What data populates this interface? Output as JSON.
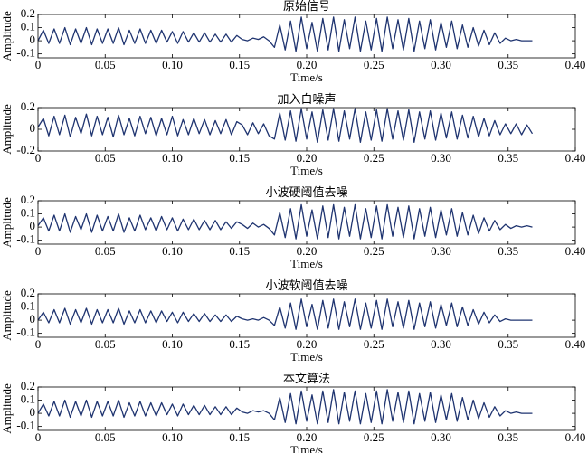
{
  "chart_data": [
    {
      "type": "line",
      "title": "原始信号",
      "xlabel": "Time/s",
      "ylabel": "Amplitude",
      "color": "#1f3470",
      "xlim": [
        0,
        0.4
      ],
      "ylim": [
        -0.13,
        0.2
      ],
      "xticks": [
        0,
        0.05,
        {
          "value": 0.1,
          "label": "0.10"
        },
        0.15,
        {
          "value": 0.2,
          "label": "0.20"
        },
        0.25,
        {
          "value": 0.3,
          "label": "0.30"
        },
        0.35,
        {
          "value": 0.4,
          "label": "0.40"
        }
      ],
      "yticks": [
        -0.1,
        0,
        0.1,
        0.2
      ],
      "x": [
        0,
        0.004,
        0.008,
        0.012,
        0.016,
        0.02,
        0.024,
        0.028,
        0.032,
        0.036,
        0.04,
        0.044,
        0.048,
        0.052,
        0.056,
        0.06,
        0.064,
        0.068,
        0.072,
        0.076,
        0.08,
        0.084,
        0.088,
        0.092,
        0.096,
        0.1,
        0.104,
        0.108,
        0.112,
        0.116,
        0.12,
        0.124,
        0.128,
        0.132,
        0.136,
        0.14,
        0.144,
        0.148,
        0.152,
        0.156,
        0.16,
        0.164,
        0.168,
        0.172,
        0.176,
        0.18,
        0.184,
        0.188,
        0.192,
        0.196,
        0.2,
        0.204,
        0.208,
        0.212,
        0.216,
        0.22,
        0.224,
        0.228,
        0.232,
        0.236,
        0.24,
        0.244,
        0.248,
        0.252,
        0.256,
        0.26,
        0.264,
        0.268,
        0.272,
        0.276,
        0.28,
        0.284,
        0.288,
        0.292,
        0.296,
        0.3,
        0.304,
        0.308,
        0.312,
        0.316,
        0.32,
        0.324,
        0.328,
        0.332,
        0.336,
        0.34,
        0.344,
        0.348,
        0.352,
        0.356,
        0.36,
        0.364,
        0.368
      ],
      "values": [
        0,
        0.08,
        -0.02,
        0.09,
        -0.02,
        0.1,
        -0.03,
        0.09,
        -0.02,
        0.1,
        -0.03,
        0.09,
        -0.02,
        0.09,
        -0.02,
        0.1,
        -0.03,
        0.08,
        -0.02,
        0.09,
        -0.02,
        0.08,
        -0.02,
        0.08,
        -0.01,
        0.07,
        -0.02,
        0.07,
        -0.01,
        0.06,
        -0.01,
        0.06,
        -0.01,
        0.05,
        -0.01,
        0.05,
        -0.01,
        0.04,
        0.01,
        0,
        0.02,
        0.01,
        0.03,
        0,
        -0.05,
        0.12,
        -0.07,
        0.15,
        -0.08,
        0.18,
        -0.06,
        0.14,
        -0.08,
        0.17,
        -0.07,
        0.18,
        -0.08,
        0.16,
        -0.06,
        0.18,
        -0.08,
        0.15,
        -0.07,
        0.17,
        -0.08,
        0.18,
        -0.06,
        0.16,
        -0.07,
        0.17,
        -0.08,
        0.15,
        -0.06,
        0.16,
        -0.07,
        0.14,
        -0.05,
        0.15,
        -0.06,
        0.12,
        -0.05,
        0.1,
        -0.04,
        0.08,
        -0.03,
        0.06,
        -0.02,
        0.02,
        0,
        0.01,
        0,
        0,
        0
      ]
    },
    {
      "type": "line",
      "title": "加入白噪声",
      "xlabel": "Time/s",
      "ylabel": "Amplitude",
      "color": "#1f3470",
      "xlim": [
        0,
        0.4
      ],
      "ylim": [
        -0.2,
        0.2
      ],
      "xticks": [
        0,
        0.05,
        {
          "value": 0.1,
          "label": "0.10"
        },
        0.15,
        {
          "value": 0.2,
          "label": "0.20"
        },
        0.25,
        {
          "value": 0.3,
          "label": "0.30"
        },
        0.35,
        {
          "value": 0.4,
          "label": "0.40"
        }
      ],
      "yticks": [
        -0.2,
        0,
        0.2
      ],
      "x": [
        0,
        0.004,
        0.008,
        0.012,
        0.016,
        0.02,
        0.024,
        0.028,
        0.032,
        0.036,
        0.04,
        0.044,
        0.048,
        0.052,
        0.056,
        0.06,
        0.064,
        0.068,
        0.072,
        0.076,
        0.08,
        0.084,
        0.088,
        0.092,
        0.096,
        0.1,
        0.104,
        0.108,
        0.112,
        0.116,
        0.12,
        0.124,
        0.128,
        0.132,
        0.136,
        0.14,
        0.144,
        0.148,
        0.152,
        0.156,
        0.16,
        0.164,
        0.168,
        0.172,
        0.176,
        0.18,
        0.184,
        0.188,
        0.192,
        0.196,
        0.2,
        0.204,
        0.208,
        0.212,
        0.216,
        0.22,
        0.224,
        0.228,
        0.232,
        0.236,
        0.24,
        0.244,
        0.248,
        0.252,
        0.256,
        0.26,
        0.264,
        0.268,
        0.272,
        0.276,
        0.28,
        0.284,
        0.288,
        0.292,
        0.296,
        0.3,
        0.304,
        0.308,
        0.312,
        0.316,
        0.32,
        0.324,
        0.328,
        0.332,
        0.336,
        0.34,
        0.344,
        0.348,
        0.352,
        0.356,
        0.36,
        0.364,
        0.368
      ],
      "values": [
        0.02,
        0.1,
        -0.06,
        0.12,
        -0.05,
        0.13,
        -0.07,
        0.11,
        -0.04,
        0.14,
        -0.06,
        0.12,
        -0.05,
        0.11,
        -0.07,
        0.13,
        -0.05,
        0.1,
        -0.06,
        0.12,
        -0.04,
        0.11,
        -0.06,
        0.1,
        -0.05,
        0.12,
        -0.06,
        0.09,
        -0.05,
        0.1,
        -0.04,
        0.09,
        -0.05,
        0.08,
        -0.04,
        0.09,
        -0.05,
        0.07,
        0.04,
        -0.05,
        0.06,
        -0.04,
        0.05,
        -0.06,
        -0.09,
        0.15,
        -0.1,
        0.17,
        -0.11,
        0.19,
        -0.09,
        0.16,
        -0.12,
        0.18,
        -0.1,
        0.19,
        -0.11,
        0.17,
        -0.09,
        0.19,
        -0.12,
        0.16,
        -0.1,
        0.18,
        -0.11,
        0.19,
        -0.09,
        0.17,
        -0.1,
        0.18,
        -0.12,
        0.16,
        -0.09,
        0.17,
        -0.1,
        0.15,
        -0.08,
        0.16,
        -0.09,
        0.13,
        -0.08,
        0.12,
        -0.07,
        0.1,
        -0.06,
        0.08,
        -0.05,
        0.05,
        -0.04,
        0.05,
        -0.05,
        0.04,
        -0.04
      ]
    },
    {
      "type": "line",
      "title": "小波硬阈值去噪",
      "xlabel": "Time/s",
      "ylabel": "Amplitude",
      "color": "#1f3470",
      "xlim": [
        0,
        0.4
      ],
      "ylim": [
        -0.13,
        0.2
      ],
      "xticks": [
        0,
        0.05,
        {
          "value": 0.1,
          "label": "0.10"
        },
        0.15,
        {
          "value": 0.2,
          "label": "0.20"
        },
        0.25,
        {
          "value": 0.3,
          "label": "0.30"
        },
        0.35,
        {
          "value": 0.4,
          "label": "0.40"
        }
      ],
      "yticks": [
        -0.1,
        0,
        0.1,
        0.2
      ],
      "x": [
        0,
        0.004,
        0.008,
        0.012,
        0.016,
        0.02,
        0.024,
        0.028,
        0.032,
        0.036,
        0.04,
        0.044,
        0.048,
        0.052,
        0.056,
        0.06,
        0.064,
        0.068,
        0.072,
        0.076,
        0.08,
        0.084,
        0.088,
        0.092,
        0.096,
        0.1,
        0.104,
        0.108,
        0.112,
        0.116,
        0.12,
        0.124,
        0.128,
        0.132,
        0.136,
        0.14,
        0.144,
        0.148,
        0.152,
        0.156,
        0.16,
        0.164,
        0.168,
        0.172,
        0.176,
        0.18,
        0.184,
        0.188,
        0.192,
        0.196,
        0.2,
        0.204,
        0.208,
        0.212,
        0.216,
        0.22,
        0.224,
        0.228,
        0.232,
        0.236,
        0.24,
        0.244,
        0.248,
        0.252,
        0.256,
        0.26,
        0.264,
        0.268,
        0.272,
        0.276,
        0.28,
        0.284,
        0.288,
        0.292,
        0.296,
        0.3,
        0.304,
        0.308,
        0.312,
        0.316,
        0.32,
        0.324,
        0.328,
        0.332,
        0.336,
        0.34,
        0.344,
        0.348,
        0.352,
        0.356,
        0.36,
        0.364,
        0.368
      ],
      "values": [
        0.01,
        0.07,
        -0.03,
        0.09,
        -0.03,
        0.1,
        -0.04,
        0.08,
        -0.02,
        0.1,
        -0.04,
        0.09,
        -0.03,
        0.08,
        -0.03,
        0.1,
        -0.04,
        0.07,
        -0.03,
        0.09,
        -0.02,
        0.07,
        -0.03,
        0.08,
        -0.02,
        0.07,
        -0.03,
        0.06,
        -0.02,
        0.06,
        -0.02,
        0.05,
        -0.02,
        0.05,
        -0.02,
        0.04,
        -0.01,
        0.04,
        0.02,
        -0.01,
        0.03,
        0,
        0.02,
        -0.01,
        -0.06,
        0.11,
        -0.08,
        0.14,
        -0.09,
        0.17,
        -0.07,
        0.13,
        -0.09,
        0.16,
        -0.08,
        0.17,
        -0.09,
        0.15,
        -0.07,
        0.17,
        -0.09,
        0.14,
        -0.08,
        0.16,
        -0.09,
        0.17,
        -0.07,
        0.15,
        -0.08,
        0.16,
        -0.09,
        0.14,
        -0.07,
        0.15,
        -0.08,
        0.13,
        -0.06,
        0.14,
        -0.07,
        0.11,
        -0.06,
        0.09,
        -0.05,
        0.07,
        -0.03,
        0.05,
        -0.02,
        0.02,
        -0.01,
        0.01,
        0,
        0.01,
        0
      ]
    },
    {
      "type": "line",
      "title": "小波软阈值去噪",
      "xlabel": "Time/s",
      "ylabel": "Amplitude",
      "color": "#1f3470",
      "xlim": [
        0,
        0.4
      ],
      "ylim": [
        -0.13,
        0.2
      ],
      "xticks": [
        0,
        0.05,
        {
          "value": 0.1,
          "label": "0.10"
        },
        0.15,
        {
          "value": 0.2,
          "label": "0.20"
        },
        0.25,
        {
          "value": 0.3,
          "label": "0.30"
        },
        0.35,
        {
          "value": 0.4,
          "label": "0.40"
        }
      ],
      "yticks": [
        -0.1,
        0,
        0.1,
        0.2
      ],
      "x": [
        0,
        0.004,
        0.008,
        0.012,
        0.016,
        0.02,
        0.024,
        0.028,
        0.032,
        0.036,
        0.04,
        0.044,
        0.048,
        0.052,
        0.056,
        0.06,
        0.064,
        0.068,
        0.072,
        0.076,
        0.08,
        0.084,
        0.088,
        0.092,
        0.096,
        0.1,
        0.104,
        0.108,
        0.112,
        0.116,
        0.12,
        0.124,
        0.128,
        0.132,
        0.136,
        0.14,
        0.144,
        0.148,
        0.152,
        0.156,
        0.16,
        0.164,
        0.168,
        0.172,
        0.176,
        0.18,
        0.184,
        0.188,
        0.192,
        0.196,
        0.2,
        0.204,
        0.208,
        0.212,
        0.216,
        0.22,
        0.224,
        0.228,
        0.232,
        0.236,
        0.24,
        0.244,
        0.248,
        0.252,
        0.256,
        0.26,
        0.264,
        0.268,
        0.272,
        0.276,
        0.28,
        0.284,
        0.288,
        0.292,
        0.296,
        0.3,
        0.304,
        0.308,
        0.312,
        0.316,
        0.32,
        0.324,
        0.328,
        0.332,
        0.336,
        0.34,
        0.344,
        0.348,
        0.352,
        0.356,
        0.36,
        0.364,
        0.368
      ],
      "values": [
        0,
        0.06,
        -0.02,
        0.08,
        -0.02,
        0.09,
        -0.03,
        0.08,
        -0.02,
        0.09,
        -0.03,
        0.08,
        -0.02,
        0.08,
        -0.02,
        0.09,
        -0.03,
        0.07,
        -0.02,
        0.08,
        -0.02,
        0.07,
        -0.02,
        0.07,
        -0.01,
        0.06,
        -0.02,
        0.06,
        -0.01,
        0.05,
        -0.01,
        0.05,
        -0.01,
        0.04,
        -0.01,
        0.04,
        -0.01,
        0.03,
        0.01,
        0,
        0.01,
        0,
        0.02,
        0,
        -0.04,
        0.1,
        -0.06,
        0.13,
        -0.07,
        0.16,
        -0.05,
        0.12,
        -0.07,
        0.15,
        -0.06,
        0.16,
        -0.07,
        0.14,
        -0.05,
        0.16,
        -0.07,
        0.13,
        -0.06,
        0.15,
        -0.07,
        0.16,
        -0.05,
        0.14,
        -0.06,
        0.15,
        -0.07,
        0.13,
        -0.05,
        0.14,
        -0.06,
        0.12,
        -0.04,
        0.13,
        -0.05,
        0.1,
        -0.04,
        0.08,
        -0.03,
        0.06,
        -0.02,
        0.04,
        -0.01,
        0.01,
        0,
        0,
        0,
        0,
        0
      ]
    },
    {
      "type": "line",
      "title": "本文算法",
      "xlabel": "Time/s",
      "ylabel": "Amplitude",
      "color": "#1f3470",
      "xlim": [
        0,
        0.4
      ],
      "ylim": [
        -0.13,
        0.2
      ],
      "xticks": [
        0,
        0.05,
        {
          "value": 0.1,
          "label": "0.10"
        },
        0.15,
        {
          "value": 0.2,
          "label": "0.20"
        },
        0.25,
        {
          "value": 0.3,
          "label": "0.30"
        },
        0.35,
        {
          "value": 0.4,
          "label": "0.40"
        }
      ],
      "yticks": [
        -0.1,
        0,
        0.1,
        0.2
      ],
      "x": [
        0,
        0.004,
        0.008,
        0.012,
        0.016,
        0.02,
        0.024,
        0.028,
        0.032,
        0.036,
        0.04,
        0.044,
        0.048,
        0.052,
        0.056,
        0.06,
        0.064,
        0.068,
        0.072,
        0.076,
        0.08,
        0.084,
        0.088,
        0.092,
        0.096,
        0.1,
        0.104,
        0.108,
        0.112,
        0.116,
        0.12,
        0.124,
        0.128,
        0.132,
        0.136,
        0.14,
        0.144,
        0.148,
        0.152,
        0.156,
        0.16,
        0.164,
        0.168,
        0.172,
        0.176,
        0.18,
        0.184,
        0.188,
        0.192,
        0.196,
        0.2,
        0.204,
        0.208,
        0.212,
        0.216,
        0.22,
        0.224,
        0.228,
        0.232,
        0.236,
        0.24,
        0.244,
        0.248,
        0.252,
        0.256,
        0.26,
        0.264,
        0.268,
        0.272,
        0.276,
        0.28,
        0.284,
        0.288,
        0.292,
        0.296,
        0.3,
        0.304,
        0.308,
        0.312,
        0.316,
        0.32,
        0.324,
        0.328,
        0.332,
        0.336,
        0.34,
        0.344,
        0.348,
        0.352,
        0.356,
        0.36,
        0.364,
        0.368
      ],
      "values": [
        0,
        0.07,
        -0.02,
        0.09,
        -0.02,
        0.1,
        -0.03,
        0.09,
        -0.02,
        0.1,
        -0.03,
        0.09,
        -0.02,
        0.09,
        -0.02,
        0.1,
        -0.03,
        0.08,
        -0.02,
        0.09,
        -0.02,
        0.08,
        -0.02,
        0.08,
        -0.01,
        0.07,
        -0.02,
        0.07,
        -0.01,
        0.06,
        -0.01,
        0.06,
        -0.01,
        0.05,
        -0.01,
        0.05,
        -0.01,
        0.04,
        0.01,
        0,
        0.02,
        0.01,
        0.02,
        0,
        -0.05,
        0.12,
        -0.07,
        0.15,
        -0.08,
        0.17,
        -0.06,
        0.14,
        -0.08,
        0.17,
        -0.07,
        0.18,
        -0.08,
        0.16,
        -0.06,
        0.17,
        -0.08,
        0.15,
        -0.07,
        0.17,
        -0.08,
        0.18,
        -0.06,
        0.16,
        -0.07,
        0.17,
        -0.08,
        0.15,
        -0.06,
        0.16,
        -0.07,
        0.14,
        -0.05,
        0.15,
        -0.06,
        0.12,
        -0.05,
        0.1,
        -0.04,
        0.08,
        -0.03,
        0.05,
        -0.02,
        0.02,
        0,
        0.01,
        0,
        0,
        0
      ]
    }
  ]
}
